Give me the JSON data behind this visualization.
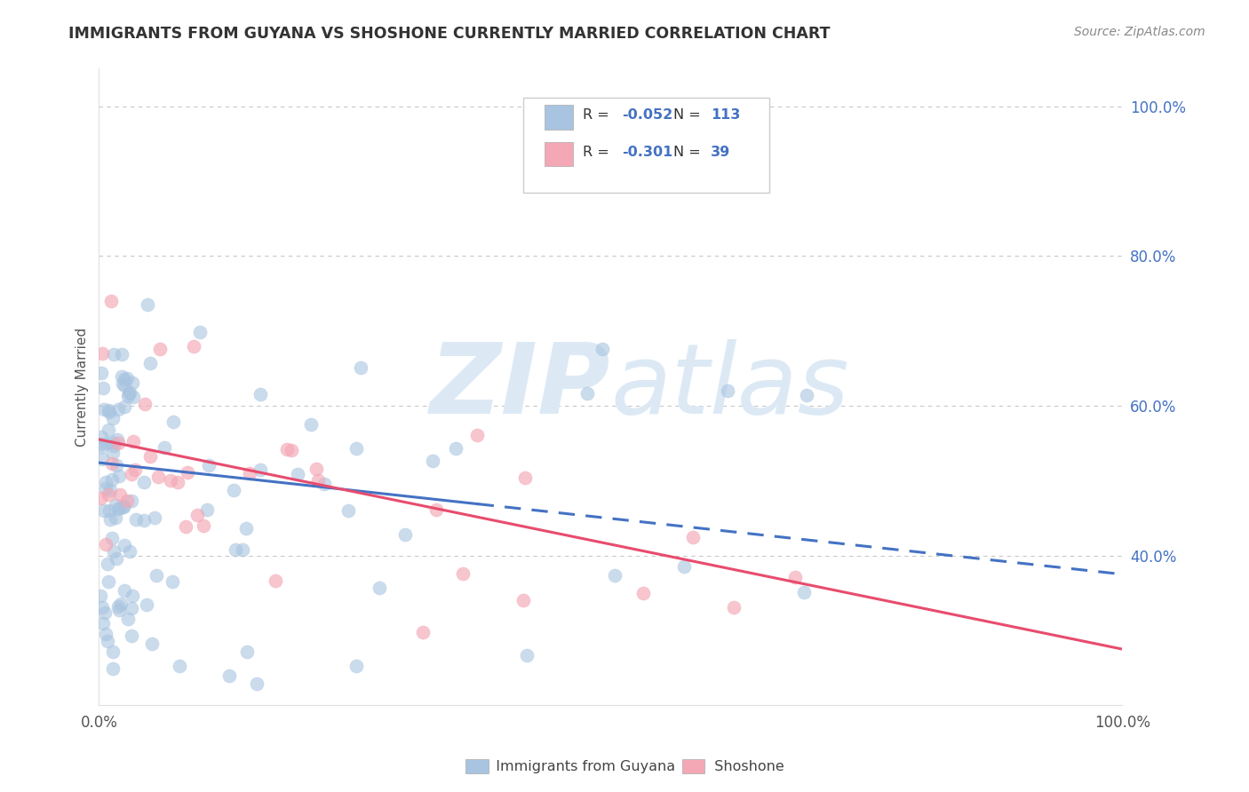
{
  "title": "IMMIGRANTS FROM GUYANA VS SHOSHONE CURRENTLY MARRIED CORRELATION CHART",
  "source_text": "Source: ZipAtlas.com",
  "ylabel": "Currently Married",
  "r_values": [
    -0.052,
    -0.301
  ],
  "n_values": [
    113,
    39
  ],
  "blue_color": "#a8c4e0",
  "pink_color": "#f4a7b5",
  "blue_line_color": "#4472c4",
  "pink_line_color": "#e84c6e",
  "title_color": "#404040",
  "source_color": "#999999",
  "legend_r_color": "#4472c4",
  "watermark_color": "#dce9f5",
  "background_color": "#ffffff",
  "grid_color": "#c8c8c8",
  "xlim": [
    0.0,
    1.0
  ],
  "ylim": [
    0.2,
    1.05
  ],
  "y_ticks": [
    0.4,
    0.6,
    0.8,
    1.0
  ],
  "y_tick_labels": [
    "40.0%",
    "60.0%",
    "80.0%",
    "100.0%"
  ],
  "x_ticks": [
    0.0,
    1.0
  ],
  "x_tick_labels": [
    "0.0%",
    "100.0%"
  ],
  "blue_line_solid_end": 0.37,
  "blue_line_start_y": 0.524,
  "blue_line_end_y": 0.375,
  "pink_line_start_y": 0.555,
  "pink_line_end_y": 0.275
}
